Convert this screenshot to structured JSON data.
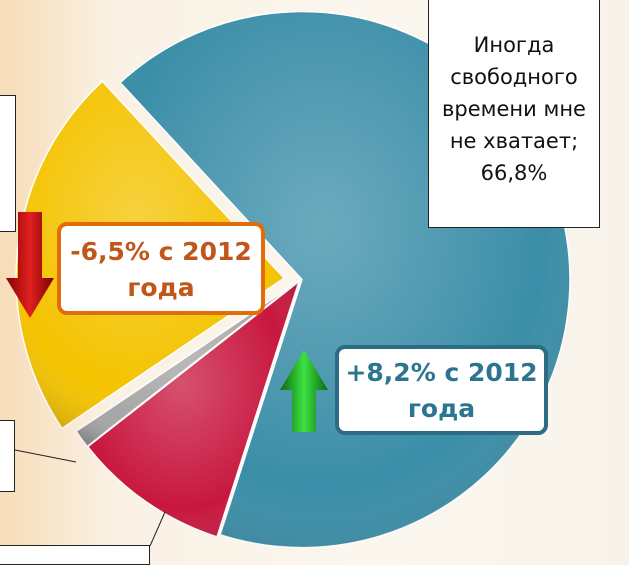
{
  "chart_data": {
    "type": "pie",
    "categories": [
      "Иногда свободного времени мне не хватает;",
      null,
      null,
      null
    ],
    "values": [
      66.8,
      9.5,
      1.1,
      22.6
    ],
    "value_labels": [
      "66,8%",
      null,
      null,
      null
    ],
    "colors": [
      "#3b8ea8",
      "#c8173f",
      "#a6a6a6",
      "#f4c300"
    ],
    "annotations": [
      "-6,5% с 2012 года",
      "+8,2% с 2012 года"
    ]
  }
}
